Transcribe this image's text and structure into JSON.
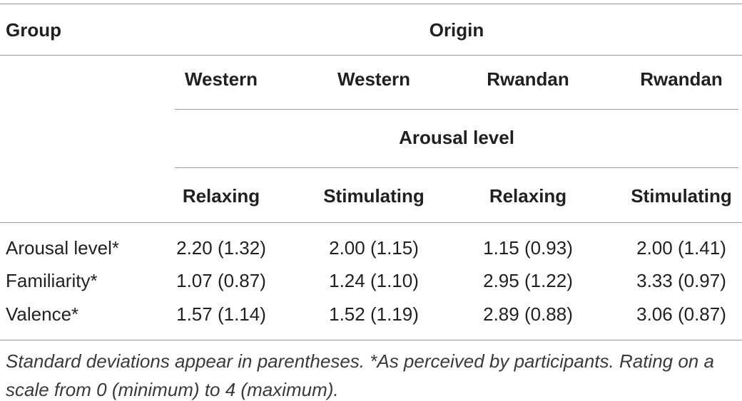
{
  "table": {
    "header": {
      "group": "Group",
      "origin": "Origin",
      "arousal": "Arousal level"
    },
    "origins": [
      "Western",
      "Western",
      "Rwandan",
      "Rwandan"
    ],
    "arousal_levels": [
      "Relaxing",
      "Stimulating",
      "Relaxing",
      "Stimulating"
    ],
    "rows": [
      [
        "Arousal level*",
        "2.20 (1.32)",
        "2.00 (1.15)",
        "1.15 (0.93)",
        "2.00 (1.41)"
      ],
      [
        "Familiarity*",
        "1.07 (0.87)",
        "1.24 (1.10)",
        "2.95 (1.22)",
        "3.33 (0.97)"
      ],
      [
        "Valence*",
        "1.57 (1.14)",
        "1.52 (1.19)",
        "2.89 (0.88)",
        "3.06 (0.87)"
      ]
    ],
    "note": "Standard deviations appear in parentheses. *As perceived by participants. Rating on a scale from 0 (minimum) to 4 (maximum)."
  }
}
